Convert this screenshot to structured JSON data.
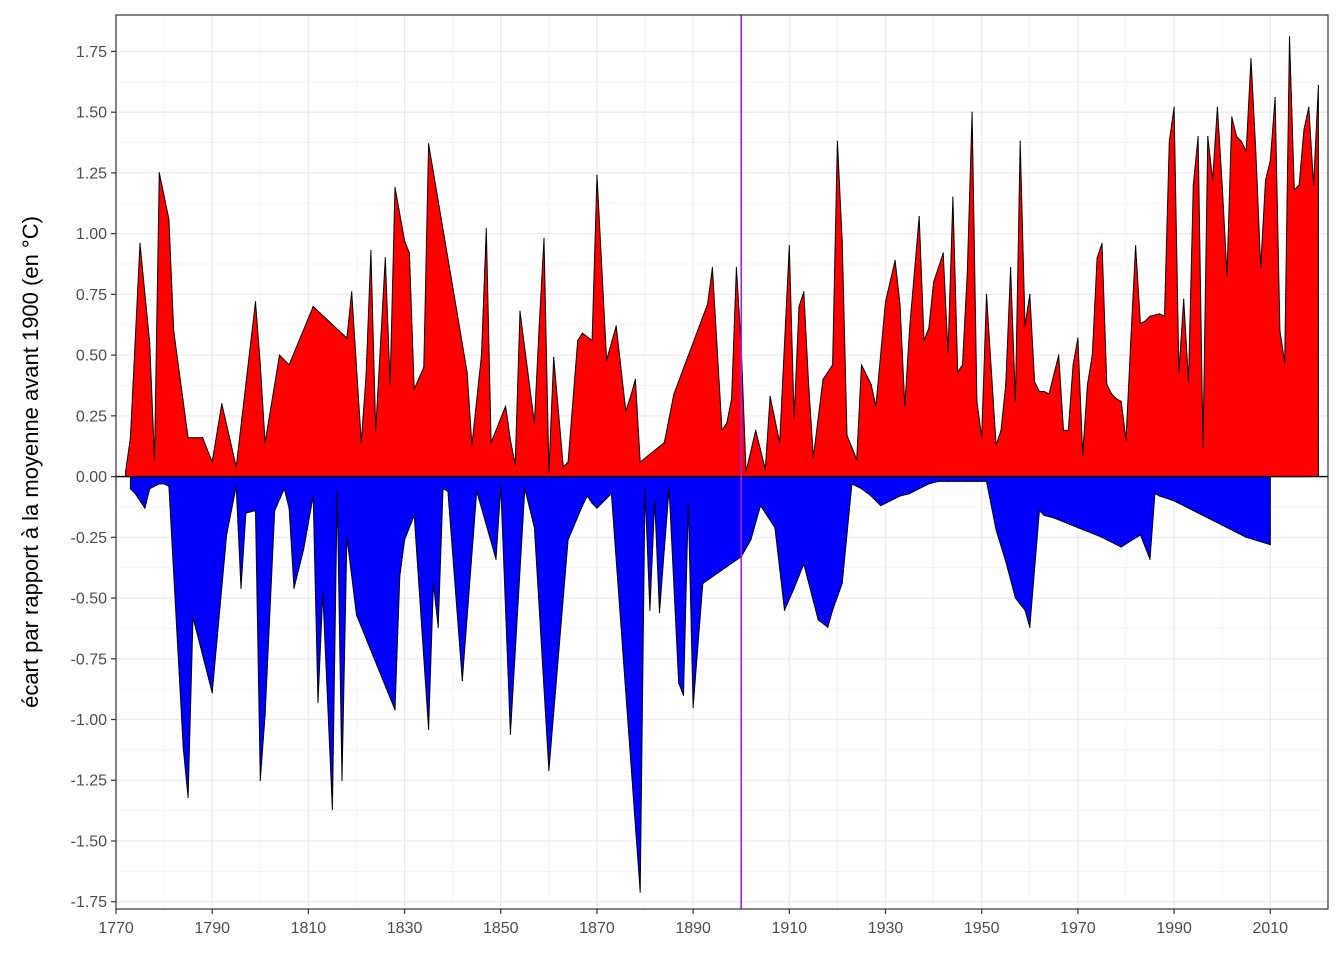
{
  "chart_data": {
    "type": "area",
    "title": "",
    "xlabel": "",
    "ylabel": "écart par rapport à la moyenne avant 1900 (en °C)",
    "xlim": [
      1770,
      2022
    ],
    "ylim": [
      -1.78,
      1.9
    ],
    "x_ticks": [
      1770,
      1790,
      1810,
      1830,
      1850,
      1870,
      1890,
      1910,
      1930,
      1950,
      1970,
      1990,
      2010
    ],
    "y_ticks": [
      -1.75,
      -1.5,
      -1.25,
      -1.0,
      -0.75,
      -0.5,
      -0.25,
      0.0,
      0.25,
      0.5,
      0.75,
      1.0,
      1.25,
      1.5,
      1.75
    ],
    "y_tick_labels": [
      "-1.75",
      "-1.50",
      "-1.25",
      "-1.00",
      "-0.75",
      "-0.50",
      "-0.25",
      "0.00",
      "0.25",
      "0.50",
      "0.75",
      "1.00",
      "1.25",
      "1.50",
      "1.75"
    ],
    "reference_line": {
      "x": 1900,
      "color": "#a020f0"
    },
    "grid": true,
    "colors": {
      "positive": "#ff0000",
      "negative": "#0000ff",
      "outline": "#000000"
    },
    "series": [
      {
        "sign": "positive",
        "x": [
          1772,
          1773,
          1775,
          1777,
          1778,
          1779,
          1781,
          1782,
          1785,
          1786,
          1787,
          1788,
          1790,
          1792,
          1795,
          1799,
          1800,
          1801,
          1804,
          1806,
          1811,
          1818,
          1819,
          1821,
          1822,
          1823,
          1824,
          1826,
          1827,
          1828,
          1830,
          1831,
          1832,
          1834,
          1835,
          1843,
          1844,
          1846,
          1847,
          1848,
          1851,
          1852,
          1853,
          1854,
          1857,
          1858,
          1859,
          1860,
          1861,
          1863,
          1864,
          1866,
          1867,
          1869,
          1870,
          1872,
          1874,
          1876,
          1877,
          1878,
          1879,
          1884,
          1886,
          1893,
          1894,
          1896,
          1897,
          1898,
          1899,
          1900,
          1901,
          1903,
          1905,
          1906,
          1908,
          1910,
          1911,
          1912,
          1913,
          1914,
          1915,
          1917,
          1919,
          1920,
          1921,
          1922,
          1924,
          1925,
          1927,
          1928,
          1930,
          1932,
          1933,
          1934,
          1935,
          1937,
          1938,
          1939,
          1940,
          1942,
          1943,
          1944,
          1945,
          1946,
          1947,
          1948,
          1949,
          1950,
          1951,
          1953,
          1954,
          1955,
          1956,
          1957,
          1958,
          1959,
          1960,
          1961,
          1962,
          1963,
          1964,
          1966,
          1967,
          1968,
          1969,
          1970,
          1971,
          1972,
          1973,
          1974,
          1975,
          1976,
          1977,
          1978,
          1979,
          1980,
          1981,
          1982,
          1983,
          1984,
          1985,
          1987,
          1988,
          1989,
          1990,
          1991,
          1992,
          1993,
          1994,
          1995,
          1996,
          1997,
          1998,
          1999,
          2000,
          2001,
          2002,
          2003,
          2004,
          2005,
          2006,
          2007,
          2008,
          2009,
          2010,
          2011,
          2012,
          2013,
          2014,
          2015,
          2016,
          2017,
          2018,
          2019,
          2020
        ],
        "values": [
          0.02,
          0.16,
          0.96,
          0.55,
          0.07,
          1.25,
          1.06,
          0.6,
          0.16,
          0.16,
          0.16,
          0.16,
          0.06,
          0.3,
          0.04,
          0.72,
          0.46,
          0.14,
          0.5,
          0.46,
          0.7,
          0.57,
          0.76,
          0.14,
          0.42,
          0.93,
          0.19,
          0.9,
          0.38,
          1.19,
          0.97,
          0.92,
          0.36,
          0.45,
          1.37,
          0.43,
          0.13,
          0.5,
          1.02,
          0.14,
          0.29,
          0.15,
          0.05,
          0.68,
          0.22,
          0.62,
          0.98,
          0.02,
          0.49,
          0.04,
          0.06,
          0.56,
          0.59,
          0.56,
          1.24,
          0.48,
          0.62,
          0.27,
          0.33,
          0.4,
          0.06,
          0.14,
          0.34,
          0.71,
          0.86,
          0.19,
          0.22,
          0.32,
          0.86,
          0.54,
          0.02,
          0.19,
          0.03,
          0.33,
          0.14,
          0.95,
          0.24,
          0.7,
          0.76,
          0.38,
          0.08,
          0.4,
          0.46,
          1.38,
          0.97,
          0.17,
          0.07,
          0.46,
          0.38,
          0.29,
          0.72,
          0.89,
          0.71,
          0.29,
          0.61,
          1.07,
          0.56,
          0.61,
          0.8,
          0.92,
          0.51,
          1.15,
          0.43,
          0.46,
          0.84,
          1.5,
          0.31,
          0.16,
          0.75,
          0.13,
          0.19,
          0.38,
          0.86,
          0.31,
          1.38,
          0.62,
          0.75,
          0.39,
          0.35,
          0.35,
          0.34,
          0.5,
          0.19,
          0.19,
          0.46,
          0.57,
          0.09,
          0.38,
          0.5,
          0.9,
          0.96,
          0.38,
          0.34,
          0.32,
          0.31,
          0.15,
          0.56,
          0.95,
          0.63,
          0.64,
          0.66,
          0.67,
          0.66,
          1.38,
          1.52,
          0.43,
          0.73,
          0.39,
          1.2,
          1.4,
          0.12,
          1.4,
          1.22,
          1.52,
          1.2,
          0.83,
          1.48,
          1.4,
          1.38,
          1.34,
          1.72,
          1.33,
          0.86,
          1.22,
          1.3,
          1.56,
          0.6,
          0.47,
          1.81,
          1.18,
          1.2,
          1.43,
          1.52,
          1.2,
          1.61
        ]
      },
      {
        "sign": "negative",
        "x": [
          1773,
          1774,
          1776,
          1777,
          1779,
          1780,
          1781,
          1784,
          1785,
          1786,
          1790,
          1793,
          1795,
          1796,
          1797,
          1799,
          1800,
          1801,
          1803,
          1805,
          1806,
          1807,
          1809,
          1811,
          1812,
          1813,
          1815,
          1816,
          1817,
          1818,
          1820,
          1828,
          1829,
          1830,
          1832,
          1835,
          1836,
          1837,
          1838,
          1839,
          1842,
          1845,
          1849,
          1850,
          1852,
          1855,
          1857,
          1860,
          1864,
          1867,
          1868,
          1869,
          1870,
          1873,
          1879,
          1880,
          1881,
          1882,
          1883,
          1884,
          1885,
          1887,
          1888,
          1889,
          1890,
          1892,
          1900,
          1902,
          1904,
          1907,
          1909,
          1911,
          1913,
          1916,
          1918,
          1919,
          1921,
          1923,
          1925,
          1927,
          1929,
          1931,
          1933,
          1935,
          1937,
          1939,
          1941,
          1943,
          1945,
          1947,
          1949,
          1951,
          1953,
          1955,
          1957,
          1959,
          1960,
          1962,
          1963,
          1965,
          1970,
          1975,
          1979,
          1983,
          1985,
          1986,
          1987,
          1990,
          1995,
          2000,
          2005,
          2010
        ],
        "values": [
          -0.05,
          -0.07,
          -0.13,
          -0.05,
          -0.03,
          -0.03,
          -0.04,
          -1.12,
          -1.32,
          -0.58,
          -0.89,
          -0.24,
          -0.04,
          -0.46,
          -0.15,
          -0.14,
          -1.25,
          -0.98,
          -0.14,
          -0.05,
          -0.13,
          -0.46,
          -0.3,
          -0.08,
          -0.93,
          -0.48,
          -1.37,
          -0.06,
          -1.25,
          -0.25,
          -0.57,
          -0.96,
          -0.41,
          -0.26,
          -0.16,
          -1.04,
          -0.44,
          -0.62,
          -0.05,
          -0.06,
          -0.84,
          -0.06,
          -0.34,
          -0.04,
          -1.06,
          -0.05,
          -0.21,
          -1.21,
          -0.26,
          -0.12,
          -0.08,
          -0.11,
          -0.13,
          -0.07,
          -1.71,
          -0.05,
          -0.55,
          -0.1,
          -0.56,
          -0.3,
          -0.05,
          -0.85,
          -0.9,
          -0.11,
          -0.95,
          -0.44,
          -0.33,
          -0.26,
          -0.12,
          -0.21,
          -0.55,
          -0.46,
          -0.36,
          -0.59,
          -0.62,
          -0.55,
          -0.44,
          -0.03,
          -0.05,
          -0.08,
          -0.12,
          -0.1,
          -0.08,
          -0.07,
          -0.05,
          -0.03,
          -0.02,
          -0.02,
          -0.02,
          -0.02,
          -0.02,
          -0.02,
          -0.22,
          -0.35,
          -0.5,
          -0.55,
          -0.62,
          -0.14,
          -0.16,
          -0.17,
          -0.21,
          -0.25,
          -0.29,
          -0.24,
          -0.34,
          -0.07,
          -0.08,
          -0.1,
          -0.15,
          -0.2,
          -0.25,
          -0.28
        ]
      }
    ]
  }
}
